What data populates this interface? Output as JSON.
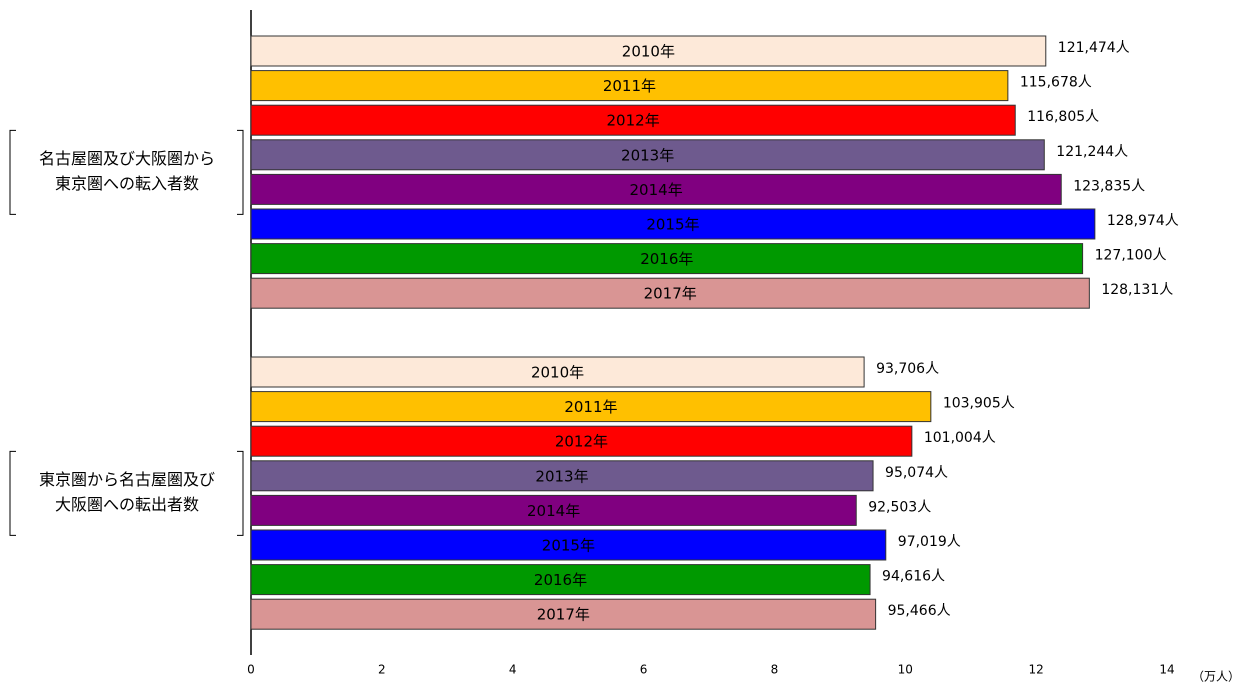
{
  "chart_data": {
    "type": "bar",
    "orientation": "horizontal",
    "categories": [
      "名古屋圏及び大阪圏から\n東京圏への転入者数",
      "東京圏から名古屋圏及び\n大阪圏への転出者数"
    ],
    "x_label": "（万人）",
    "xlim": [
      0,
      14
    ],
    "xticks": [
      0,
      2,
      4,
      6,
      8,
      10,
      12,
      14
    ],
    "grid": false,
    "series": [
      {
        "name": "2010年",
        "color": "#fde9d9",
        "values": [
          12.1474,
          9.3706
        ],
        "value_labels": [
          "121,474人",
          "93,706人"
        ]
      },
      {
        "name": "2011年",
        "color": "#ffc000",
        "values": [
          11.5678,
          10.3905
        ],
        "value_labels": [
          "115,678人",
          "103,905人"
        ]
      },
      {
        "name": "2012年",
        "color": "#ff0000",
        "values": [
          11.6805,
          10.1004
        ],
        "value_labels": [
          "116,805人",
          "101,004人"
        ]
      },
      {
        "name": "2013年",
        "color": "#6e5a8e",
        "values": [
          12.1244,
          9.5074
        ],
        "value_labels": [
          "121,244人",
          "95,074人"
        ]
      },
      {
        "name": "2014年",
        "color": "#800080",
        "values": [
          12.3835,
          9.2503
        ],
        "value_labels": [
          "123,835人",
          "92,503人"
        ]
      },
      {
        "name": "2015年",
        "color": "#0000ff",
        "values": [
          12.8974,
          9.7019
        ],
        "value_labels": [
          "128,974人",
          "97,019人"
        ]
      },
      {
        "name": "2016年",
        "color": "#009900",
        "values": [
          12.71,
          9.4616
        ],
        "value_labels": [
          "127,100人",
          "94,616人"
        ]
      },
      {
        "name": "2017年",
        "color": "#d99594",
        "values": [
          12.8131,
          9.5466
        ],
        "value_labels": [
          "128,131人",
          "95,466人"
        ]
      }
    ]
  }
}
